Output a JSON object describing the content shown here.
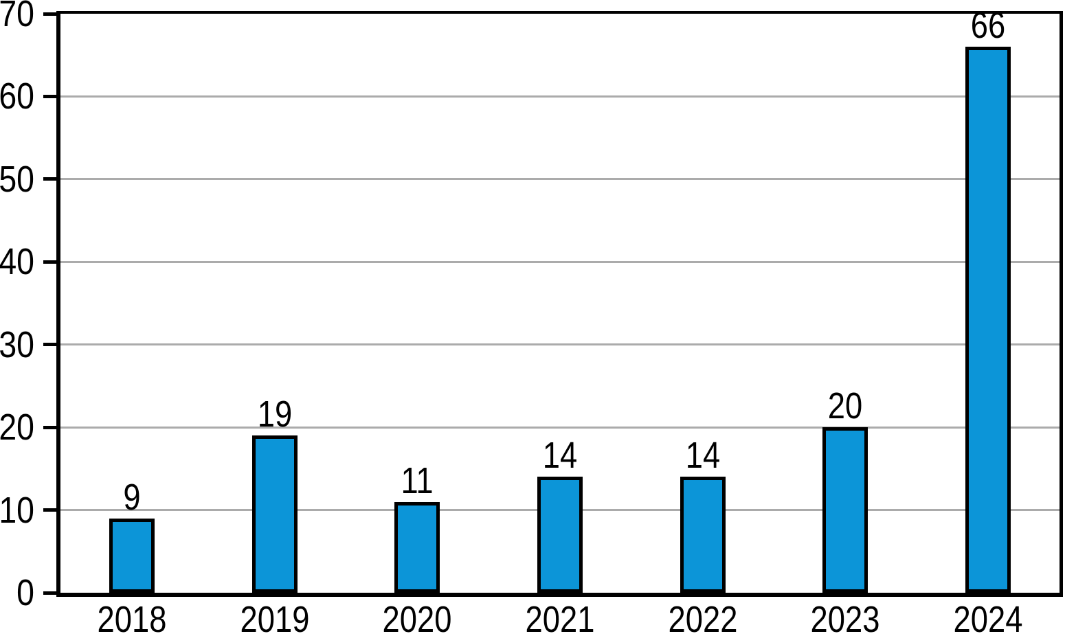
{
  "chart_data": {
    "type": "bar",
    "title": "",
    "xlabel": "",
    "ylabel": "",
    "categories": [
      "2018",
      "2019",
      "2020",
      "2021",
      "2022",
      "2023",
      "2024"
    ],
    "values": [
      9,
      19,
      11,
      14,
      14,
      20,
      66
    ],
    "value_labels": [
      "9",
      "19",
      "11",
      "14",
      "14",
      "20",
      "66"
    ],
    "ylim": [
      0,
      70
    ],
    "yticks": [
      0,
      10,
      20,
      30,
      40,
      50,
      60,
      70
    ],
    "ytick_labels": [
      "0",
      "10",
      "20",
      "30",
      "40",
      "50",
      "60",
      "70"
    ],
    "grid": true,
    "legend_position": "none",
    "colors": {
      "bar_fill": "#0c95d8",
      "bar_outline": "#000000",
      "gridline": "#ababab",
      "axis": "#000000",
      "text": "#000000",
      "background": "#ffffff"
    }
  }
}
